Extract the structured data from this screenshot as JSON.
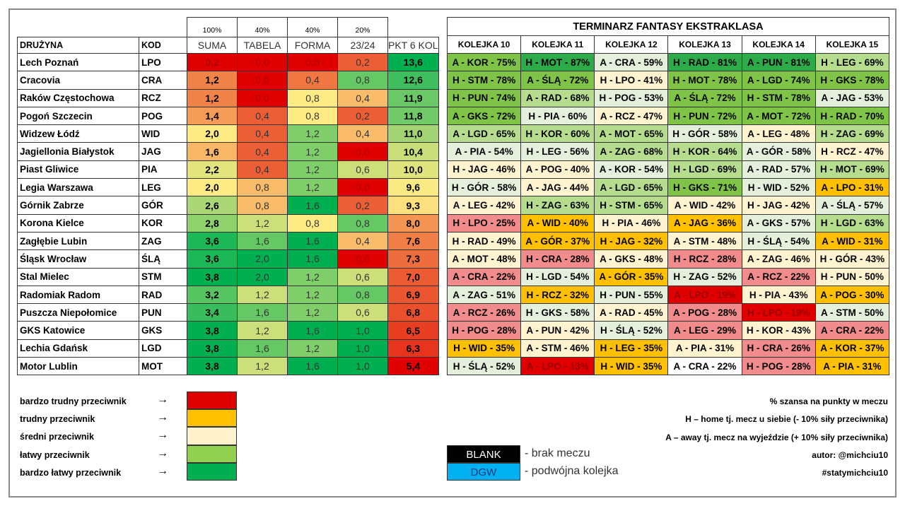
{
  "left_table": {
    "weights": [
      "100%",
      "40%",
      "40%",
      "20%"
    ],
    "headers": [
      "DRUŻYNA",
      "KOD",
      "SUMA",
      "TABELA",
      "FORMA",
      "23/24",
      "PKT 6 KOL"
    ],
    "rows": [
      [
        "Lech Poznań",
        "LPO",
        "0,2",
        "0,0",
        "0,0",
        "0,2",
        "13,6"
      ],
      [
        "Cracovia",
        "CRA",
        "1,2",
        "0,0",
        "0,4",
        "0,8",
        "12,6"
      ],
      [
        "Raków Częstochowa",
        "RCZ",
        "1,2",
        "0,0",
        "0,8",
        "0,4",
        "11,9"
      ],
      [
        "Pogoń Szczecin",
        "POG",
        "1,4",
        "0,4",
        "0,8",
        "0,2",
        "11,8"
      ],
      [
        "Widzew Łódź",
        "WID",
        "2,0",
        "0,4",
        "1,2",
        "0,4",
        "11,0"
      ],
      [
        "Jagiellonia Białystok",
        "JAG",
        "1,6",
        "0,4",
        "1,2",
        "0,0",
        "10,4"
      ],
      [
        "Piast Gliwice",
        "PIA",
        "2,2",
        "0,4",
        "1,2",
        "0,6",
        "10,0"
      ],
      [
        "Legia Warszawa",
        "LEG",
        "2,0",
        "0,8",
        "1,2",
        "0,0",
        "9,6"
      ],
      [
        "Górnik Zabrze",
        "GÓR",
        "2,6",
        "0,8",
        "1,6",
        "0,2",
        "9,3"
      ],
      [
        "Korona Kielce",
        "KOR",
        "2,8",
        "1,2",
        "0,8",
        "0,8",
        "8,0"
      ],
      [
        "Zagłębie Lubin",
        "ZAG",
        "3,6",
        "1,6",
        "1,6",
        "0,4",
        "7,6"
      ],
      [
        "Śląsk Wrocław",
        "ŚLĄ",
        "3,6",
        "2,0",
        "1,6",
        "0,0",
        "7,3"
      ],
      [
        "Stal Mielec",
        "STM",
        "3,8",
        "2,0",
        "1,2",
        "0,6",
        "7,0"
      ],
      [
        "Radomiak Radom",
        "RAD",
        "3,2",
        "1,2",
        "1,2",
        "0,8",
        "6,9"
      ],
      [
        "Puszcza Niepołomice",
        "PUN",
        "3,4",
        "1,6",
        "1,2",
        "0,6",
        "6,8"
      ],
      [
        "GKS Katowice",
        "GKS",
        "3,8",
        "1,2",
        "1,6",
        "1,0",
        "6,5"
      ],
      [
        "Lechia Gdańsk",
        "LGD",
        "3,8",
        "1,6",
        "1,2",
        "1,0",
        "6,3"
      ],
      [
        "Motor Lublin",
        "MOT",
        "3,8",
        "1,2",
        "1,6",
        "1,0",
        "5,4"
      ]
    ]
  },
  "fixtures": {
    "title": "TERMINARZ FANTASY EKSTRAKLASA",
    "headers": [
      "KOLEJKA 10",
      "KOLEJKA 11",
      "KOLEJKA 12",
      "KOLEJKA 13",
      "KOLEJKA 14",
      "KOLEJKA 15"
    ],
    "rows": [
      [
        "A - KOR - 75%",
        "H - MOT - 87%",
        "A - CRA - 59%",
        "H - RAD - 81%",
        "A - PUN - 81%",
        "H - LEG - 69%"
      ],
      [
        "H - STM - 78%",
        "A - ŚLĄ - 72%",
        "H - LPO - 41%",
        "H - MOT - 78%",
        "A - LGD - 74%",
        "H - GKS - 78%"
      ],
      [
        "H - PUN - 74%",
        "A - RAD - 68%",
        "H - POG - 53%",
        "A - ŚLĄ - 72%",
        "H - STM - 78%",
        "A - JAG - 53%"
      ],
      [
        "A - GKS - 72%",
        "H - PIA - 60%",
        "A - RCZ - 47%",
        "H - PUN - 72%",
        "A - MOT - 72%",
        "H - RAD - 70%"
      ],
      [
        "A - LGD - 65%",
        "H - KOR - 60%",
        "A - MOT - 65%",
        "H - GÓR - 58%",
        "A - LEG - 48%",
        "H - ZAG - 69%"
      ],
      [
        "A - PIA - 54%",
        "H - LEG - 56%",
        "A - ZAG - 68%",
        "H - KOR - 64%",
        "A - GÓR - 58%",
        "H - RCZ - 47%"
      ],
      [
        "H - JAG - 46%",
        "A - POG - 40%",
        "A - KOR - 54%",
        "H - LGD - 69%",
        "A - RAD - 57%",
        "H - MOT - 69%"
      ],
      [
        "H - GÓR - 58%",
        "A - JAG - 44%",
        "A - LGD - 65%",
        "H - GKS - 71%",
        "H - WID - 52%",
        "A - LPO - 31%"
      ],
      [
        "A - LEG - 42%",
        "H - ZAG - 63%",
        "H - STM - 65%",
        "A - WID - 42%",
        "H - JAG - 42%",
        "A - ŚLĄ - 57%"
      ],
      [
        "H - LPO - 25%",
        "A - WID - 40%",
        "H - PIA - 46%",
        "A - JAG - 36%",
        "A - GKS - 57%",
        "H - LGD - 63%"
      ],
      [
        "H - RAD - 49%",
        "A - GÓR - 37%",
        "H - JAG - 32%",
        "A - STM - 48%",
        "H - ŚLĄ - 54%",
        "A - WID - 31%"
      ],
      [
        "A - MOT - 48%",
        "H - CRA - 28%",
        "A - GKS - 48%",
        "H - RCZ - 28%",
        "A - ZAG - 46%",
        "H - GÓR - 43%"
      ],
      [
        "A - CRA - 22%",
        "H - LGD - 54%",
        "A - GÓR - 35%",
        "H - ZAG - 52%",
        "A - RCZ - 22%",
        "H - PUN - 50%"
      ],
      [
        "A - ZAG - 51%",
        "H - RCZ - 32%",
        "H - PUN - 55%",
        "A - LPO - 19%",
        "H - PIA - 43%",
        "A - POG - 30%"
      ],
      [
        "A - RCZ - 26%",
        "H - GKS - 58%",
        "A - RAD - 45%",
        "A - POG - 28%",
        "H - LPO - 19%",
        "A - STM - 50%"
      ],
      [
        "H - POG - 28%",
        "A - PUN - 42%",
        "H - ŚLĄ - 52%",
        "A - LEG - 29%",
        "H - KOR - 43%",
        "A - CRA - 22%"
      ],
      [
        "H - WID - 35%",
        "A - STM - 46%",
        "H - LEG - 35%",
        "A - PIA - 31%",
        "H - CRA - 26%",
        "A - KOR - 37%"
      ],
      [
        "H - ŚLĄ - 52%",
        "A - LPO - 13%",
        "H - WID - 35%",
        "A - CRA - 22%",
        "H - POG - 28%",
        "A - PIA - 31%"
      ]
    ],
    "levels": [
      "mdwddl",
      "mmcmmm",
      "mlwmmw",
      "mwcmmm",
      "lllwcl",
      "wwllwc",
      "ccwlwl",
      "wclmwo",
      "cllccw",
      "pocowl",
      "coocwo",
      "cpcpcc",
      "pwowpc",
      "wowrco",
      "pwcprw",
      "pcwpcp",
      "ococpo",
      "wrospo"
    ]
  },
  "legend": {
    "items": [
      {
        "label": "bardzo trudny przeciwnik",
        "color": "#e00000"
      },
      {
        "label": "trudny przeciwnik",
        "color": "#ffc000"
      },
      {
        "label": "średni przeciwnik",
        "color": "#fff2cc"
      },
      {
        "label": "łatwy przeciwnik",
        "color": "#92d050"
      },
      {
        "label": "bardzo łatwy przeciwnik",
        "color": "#00b050"
      }
    ],
    "arrow": "→",
    "blank": {
      "label": "BLANK",
      "desc": "- brak meczu",
      "color": "#000000"
    },
    "dgw": {
      "label": "DGW",
      "desc": "- podwójna kolejka",
      "color": "#00b0f0"
    }
  },
  "notes": [
    "% szansa na punkty w meczu",
    "H – home tj. mecz u siebie (- 10% siły przeciwnika)",
    "A – away tj. mecz na wyjeździe (+ 10% siły przeciwnika)",
    "autor: @michciu10",
    "#statymichciu10"
  ]
}
